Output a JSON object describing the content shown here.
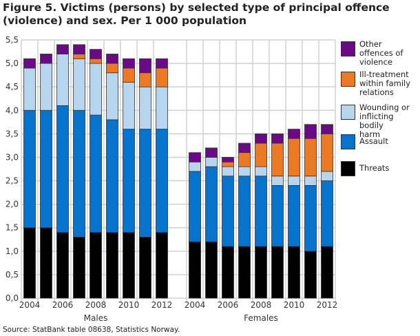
{
  "chart_data": {
    "type": "bar",
    "stacked": true,
    "title": "Figure 5. Victims (persons) by selected type of principal offence (violence) and sex. Per 1 000 population",
    "source": "Source: StatBank table 08638, Statistics Norway.",
    "ylim": [
      0,
      5.5
    ],
    "yticks": [
      "0,0",
      "0,5",
      "1,0",
      "1,5",
      "2,0",
      "2,5",
      "3,0",
      "3,5",
      "4,0",
      "4,5",
      "5,0",
      "5,5"
    ],
    "grid": true,
    "legend_position": "right",
    "groups": [
      {
        "name": "Males",
        "categories": [
          "2004",
          "2005",
          "2006",
          "2007",
          "2008",
          "2009",
          "2010",
          "2011",
          "2012"
        ],
        "series": [
          {
            "name": "Threats",
            "values": [
              1.5,
              1.5,
              1.4,
              1.3,
              1.4,
              1.4,
              1.4,
              1.3,
              1.4
            ]
          },
          {
            "name": "Assault",
            "values": [
              2.5,
              2.5,
              2.7,
              2.7,
              2.5,
              2.4,
              2.2,
              2.3,
              2.2
            ]
          },
          {
            "name": "Wounding or inflicting bodily harm",
            "values": [
              0.9,
              1.0,
              1.1,
              1.1,
              1.1,
              1.0,
              1.0,
              0.9,
              0.9
            ]
          },
          {
            "name": "Ill-treatment within family relations",
            "values": [
              0,
              0,
              0,
              0.1,
              0.1,
              0.2,
              0.3,
              0.3,
              0.4
            ]
          },
          {
            "name": "Other offences of violence",
            "values": [
              0.2,
              0.2,
              0.2,
              0.2,
              0.2,
              0.2,
              0.2,
              0.3,
              0.2
            ]
          }
        ]
      },
      {
        "name": "Females",
        "categories": [
          "2004",
          "2005",
          "2006",
          "2007",
          "2008",
          "2009",
          "2010",
          "2011",
          "2012"
        ],
        "series": [
          {
            "name": "Threats",
            "values": [
              1.2,
              1.2,
              1.1,
              1.1,
              1.1,
              1.1,
              1.1,
              1.0,
              1.1
            ]
          },
          {
            "name": "Assault",
            "values": [
              1.5,
              1.6,
              1.5,
              1.5,
              1.5,
              1.3,
              1.3,
              1.4,
              1.4
            ]
          },
          {
            "name": "Wounding or inflicting bodily harm",
            "values": [
              0.2,
              0.2,
              0.2,
              0.2,
              0.2,
              0.2,
              0.2,
              0.2,
              0.2
            ]
          },
          {
            "name": "Ill-treatment within family relations",
            "values": [
              0,
              0,
              0.1,
              0.3,
              0.5,
              0.7,
              0.8,
              0.8,
              0.8
            ]
          },
          {
            "name": "Other offences of violence",
            "values": [
              0.2,
              0.2,
              0.1,
              0.2,
              0.2,
              0.2,
              0.2,
              0.3,
              0.2
            ]
          }
        ]
      }
    ],
    "xtick_labels": [
      "2004",
      "2006",
      "2008",
      "2010",
      "2012"
    ],
    "colors": [
      "#000000",
      "#0673cd",
      "#b8d5f0",
      "#ec7a25",
      "#6a0a87"
    ],
    "legend": [
      {
        "name": "Other offences of violence",
        "lines": [
          "Other",
          "offences of",
          "violence"
        ],
        "color": "#6a0a87"
      },
      {
        "name": "Ill-treatment within family relations",
        "lines": [
          "Ill-treatment",
          "within family",
          "relations"
        ],
        "color": "#ec7a25"
      },
      {
        "name": "Wounding or inflicting bodily harm",
        "lines": [
          "Wounding or",
          "inflicting bodily",
          "harm"
        ],
        "color": "#b8d5f0"
      },
      {
        "name": "Assault",
        "lines": [
          "Assault"
        ],
        "color": "#0673cd"
      },
      {
        "name": "Threats",
        "lines": [
          "Threats"
        ],
        "color": "#000000"
      }
    ]
  }
}
